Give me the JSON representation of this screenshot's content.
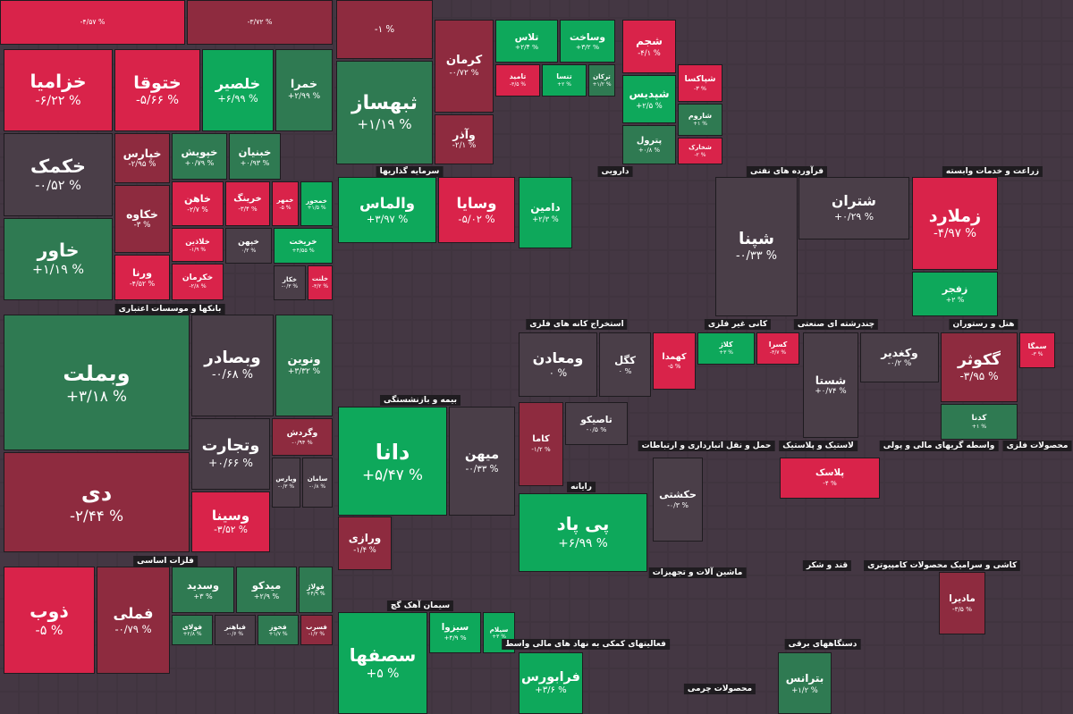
{
  "tiles": [
    {
      "change": "-۴/۵۷ %"
    },
    {
      "change": "-۳/۷۲ %"
    },
    {
      "symbol": "خزامیا",
      "change": "-۶/۲۲ %"
    },
    {
      "symbol": "ختوقا",
      "change": "-۵/۶۶ %"
    },
    {
      "symbol": "خلصیر",
      "change": "+۶/۹۹ %"
    },
    {
      "symbol": "خمرا",
      "change": "+۲/۹۹ %"
    },
    {
      "symbol": "خکمک",
      "change": "-۰/۵۲ %"
    },
    {
      "symbol": "خاور",
      "change": "+۱/۱۹ %"
    },
    {
      "symbol": "خپارس",
      "change": "-۲/۹۵ %"
    },
    {
      "symbol": "خکاوه",
      "change": "-۳ %"
    },
    {
      "symbol": "ورنا",
      "change": "-۴/۵۲ %"
    },
    {
      "symbol": "خپویش",
      "change": "+۰/۷۹ %"
    },
    {
      "symbol": "خبنیان",
      "change": "+۰/۹۳ %"
    },
    {
      "symbol": "خاهن",
      "change": "-۲/۷ %"
    },
    {
      "symbol": "خرینگ",
      "change": "-۳/۴ %"
    },
    {
      "symbol": "خمهر",
      "change": "-۵ %"
    },
    {
      "symbol": "خمحور",
      "change": "+۱/۵ %"
    },
    {
      "symbol": "خلاذین",
      "change": "-۱/۹ %"
    },
    {
      "symbol": "خکرمان",
      "change": "-۲/۸ %"
    },
    {
      "symbol": "خپهن",
      "change": "۰/۲ %"
    },
    {
      "symbol": "خریخت",
      "change": "+۴/۵۵ %"
    },
    {
      "symbol": "خکار",
      "change": "-۰/۳ %"
    },
    {
      "symbol": "خلنت",
      "change": "-۳/۲ %"
    },
    {
      "symbol": "وبملت",
      "change": "+۳/۱۸ %"
    },
    {
      "symbol": "دی",
      "change": "-۲/۴۴ %"
    },
    {
      "symbol": "وبصادر",
      "change": "-۰/۶۸ %"
    },
    {
      "symbol": "ونوین",
      "change": "+۳/۳۲ %"
    },
    {
      "symbol": "وتجارت",
      "change": "+۰/۶۶ %"
    },
    {
      "symbol": "وگردش",
      "change": "-۰/۹۴ %"
    },
    {
      "symbol": "وپارس",
      "change": "-۰/۳ %"
    },
    {
      "symbol": "سامان",
      "change": "-۰/۸ %"
    },
    {
      "symbol": "وسینا",
      "change": "-۳/۵۲ %"
    },
    {
      "symbol": "ذوب",
      "change": "-۵ %"
    },
    {
      "symbol": "فملی",
      "change": "-۰/۷۹ %"
    },
    {
      "symbol": "وسدید",
      "change": "+۳ %"
    },
    {
      "symbol": "میدکو",
      "change": "+۲/۹ %"
    },
    {
      "symbol": "فولاژ",
      "change": "+۴/۹ %"
    },
    {
      "symbol": "فولای",
      "change": "+۲/۸ %"
    },
    {
      "symbol": "فباهنر",
      "change": "-۰/۶ %"
    },
    {
      "symbol": "فخوز",
      "change": "+۱/۷ %"
    },
    {
      "symbol": "فسرب",
      "change": "-۱/۲ %"
    },
    {
      "change": "-۱ %"
    },
    {
      "symbol": "ثبهساز",
      "change": "+۱/۱۹ %"
    },
    {
      "symbol": "کرمان",
      "change": "-۰/۷۲ %"
    },
    {
      "symbol": "وآذر",
      "change": "-۲/۱ %"
    },
    {
      "symbol": "تلاس",
      "change": "+۲/۴ %"
    },
    {
      "symbol": "وساخت",
      "change": "+۳/۲ %"
    },
    {
      "symbol": "تامید",
      "change": "-۳/۵ %"
    },
    {
      "symbol": "تنسا",
      "change": "+۲ %"
    },
    {
      "symbol": "ترکان",
      "change": "+۱/۲ %"
    },
    {
      "symbol": "والماس",
      "change": "+۳/۹۷ %"
    },
    {
      "symbol": "وسایا",
      "change": "-۵/۰۲ %"
    },
    {
      "symbol": "دانا",
      "change": "+۵/۴۷ %"
    },
    {
      "symbol": "میهن",
      "change": "-۰/۳۳ %"
    },
    {
      "symbol": "سصفها",
      "change": "+۵ %"
    },
    {
      "symbol": "سیزوا",
      "change": "+۴/۹ %"
    },
    {
      "symbol": "سیلام",
      "change": "+۳ %"
    },
    {
      "symbol": "ورازی",
      "change": "-۱/۴ %"
    },
    {
      "symbol": "دامین",
      "change": "+۲/۳ %"
    },
    {
      "symbol": "ومعادن",
      "change": "۰ %"
    },
    {
      "symbol": "کگل",
      "change": "۰ %"
    },
    {
      "symbol": "پی پاد",
      "change": "+۶/۹۹ %"
    },
    {
      "symbol": "فرابورس",
      "change": "+۳/۶ %"
    },
    {
      "symbol": "کاما",
      "change": "-۱/۲ %"
    },
    {
      "symbol": "تاصیکو",
      "change": "-۰/۵ %"
    },
    {
      "symbol": "شجم",
      "change": "-۴/۱ %"
    },
    {
      "symbol": "شپدیس",
      "change": "+۲/۵ %"
    },
    {
      "symbol": "پترول",
      "change": "+۰/۸ %"
    },
    {
      "symbol": "شپاکسا",
      "change": "-۳ %"
    },
    {
      "symbol": "شاروم",
      "change": "+۱ %"
    },
    {
      "symbol": "شخارک",
      "change": "-۲ %"
    },
    {
      "symbol": "شپنا",
      "change": "-۰/۳۳ %"
    },
    {
      "symbol": "شتران",
      "change": "+۰/۲۹ %"
    },
    {
      "symbol": "زملارد",
      "change": "-۴/۹۷ %"
    },
    {
      "symbol": "زفجر",
      "change": "+۲ %"
    },
    {
      "symbol": "گکوثر",
      "change": "-۳/۹۵ %"
    },
    {
      "symbol": "کدنا",
      "change": "+۱ %"
    },
    {
      "symbol": "شستا",
      "change": "+۰/۷۴ %"
    },
    {
      "symbol": "وکغدیر",
      "change": "-۰/۲ %"
    },
    {
      "symbol": "پلاسک",
      "change": "-۴ %"
    },
    {
      "symbol": "مادیرا",
      "change": "-۳/۵ %"
    },
    {
      "symbol": "کهمدا",
      "change": "-۵ %"
    },
    {
      "symbol": "کلاژ",
      "change": "+۳ %"
    },
    {
      "symbol": "کسرا",
      "change": "-۳/۷ %"
    },
    {
      "symbol": "حکشتی",
      "change": "-۰/۳ %"
    },
    {
      "symbol": "بترانس",
      "change": "+۱/۲ %"
    },
    {
      "symbol": "سمگا",
      "change": "-۳ %"
    }
  ],
  "sector_labels": [
    "سرمایه گذاریها",
    "دارویی",
    "فرآورده های نفتی",
    "زراعت و خدمات وابسته",
    "بانکها و موسسات اعتباری",
    "استخراج کانه های فلزی",
    "کانی غیر فلزی",
    "چندرشته ای صنعتی",
    "هتل و رستوران",
    "بیمه و بازنشستگی",
    "حمل و نقل انبارداری و ارتباطات",
    "لاستیک و پلاستیک",
    "واسطه گریهای مالی و پولی",
    "محصولات فلزی",
    "رایانه",
    "فلزات اساسی",
    "ماشین آلات و تجهیزات",
    "قند و شکر",
    "محصولات کامپیوتری",
    "کاشی و سرامیک",
    "سیمان آهک گچ",
    "فعالیتهای کمکی به نهاد های مالی واسط",
    "دستگاههای برقی",
    "محصولات چرمی"
  ]
}
